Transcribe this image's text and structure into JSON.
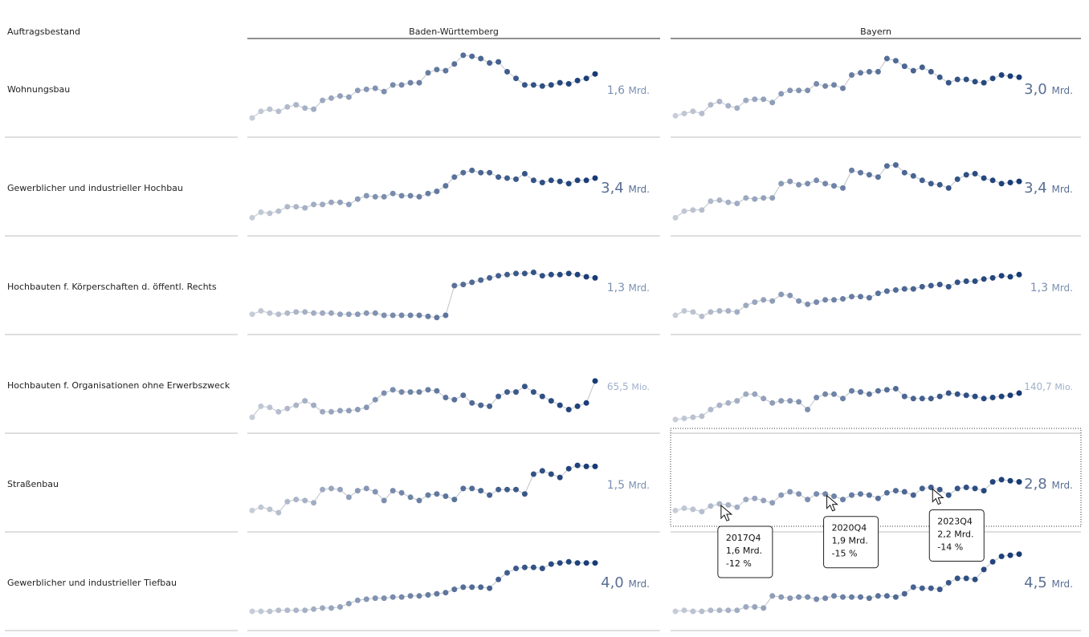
{
  "chart_data": {
    "type": "line",
    "title": "Auftragsbestand",
    "columns": [
      "Baden-Württemberg",
      "Bayern"
    ],
    "rows": [
      {
        "label": "Wohnungsbau",
        "cells": [
          {
            "series": [
              0.08,
              0.14,
              0.16,
              0.14,
              0.18,
              0.2,
              0.17,
              0.16,
              0.24,
              0.26,
              0.28,
              0.27,
              0.33,
              0.34,
              0.35,
              0.32,
              0.38,
              0.38,
              0.4,
              0.4,
              0.49,
              0.52,
              0.51,
              0.57,
              0.65,
              0.64,
              0.62,
              0.58,
              0.59,
              0.5,
              0.44,
              0.38,
              0.38,
              0.37,
              0.38,
              0.4,
              0.39,
              0.42,
              0.44,
              0.48
            ],
            "total": "1,6",
            "unit": "Mrd.",
            "size": "mid"
          },
          {
            "series": [
              0.1,
              0.12,
              0.14,
              0.12,
              0.2,
              0.23,
              0.19,
              0.17,
              0.24,
              0.25,
              0.25,
              0.22,
              0.3,
              0.33,
              0.33,
              0.33,
              0.39,
              0.37,
              0.38,
              0.35,
              0.47,
              0.49,
              0.5,
              0.5,
              0.62,
              0.6,
              0.55,
              0.51,
              0.54,
              0.5,
              0.45,
              0.4,
              0.43,
              0.43,
              0.41,
              0.4,
              0.44,
              0.47,
              0.46,
              0.45
            ],
            "total": "3,0",
            "unit": "Mrd.",
            "size": "big"
          }
        ]
      },
      {
        "label": "Gewerblicher und industrieller Hochbau",
        "cells": [
          {
            "series": [
              0.07,
              0.12,
              0.11,
              0.13,
              0.17,
              0.17,
              0.16,
              0.19,
              0.19,
              0.21,
              0.21,
              0.19,
              0.24,
              0.27,
              0.26,
              0.26,
              0.29,
              0.27,
              0.27,
              0.26,
              0.29,
              0.31,
              0.36,
              0.44,
              0.48,
              0.5,
              0.48,
              0.48,
              0.44,
              0.43,
              0.42,
              0.47,
              0.41,
              0.39,
              0.41,
              0.4,
              0.38,
              0.41,
              0.41,
              0.43
            ],
            "total": "3,4",
            "unit": "Mrd.",
            "size": "big"
          },
          {
            "series": [
              0.07,
              0.13,
              0.14,
              0.14,
              0.22,
              0.23,
              0.21,
              0.2,
              0.25,
              0.24,
              0.25,
              0.25,
              0.38,
              0.4,
              0.37,
              0.38,
              0.41,
              0.38,
              0.36,
              0.34,
              0.5,
              0.48,
              0.46,
              0.44,
              0.54,
              0.55,
              0.48,
              0.45,
              0.41,
              0.38,
              0.37,
              0.34,
              0.42,
              0.46,
              0.47,
              0.43,
              0.41,
              0.38,
              0.39,
              0.4
            ],
            "total": "3,4",
            "unit": "Mrd.",
            "size": "big"
          }
        ]
      },
      {
        "label": "Hochbauten f. Körperschaften d. öffentl. Rechts",
        "cells": [
          {
            "series": [
              0.09,
              0.12,
              0.1,
              0.09,
              0.1,
              0.11,
              0.11,
              0.1,
              0.1,
              0.1,
              0.09,
              0.09,
              0.09,
              0.1,
              0.1,
              0.08,
              0.08,
              0.08,
              0.08,
              0.08,
              0.07,
              0.06,
              0.08,
              0.35,
              0.36,
              0.38,
              0.4,
              0.42,
              0.44,
              0.45,
              0.46,
              0.46,
              0.47,
              0.44,
              0.45,
              0.45,
              0.46,
              0.45,
              0.43,
              0.42
            ],
            "total": "1,3",
            "unit": "Mrd.",
            "size": "mid"
          },
          {
            "series": [
              0.08,
              0.12,
              0.11,
              0.07,
              0.11,
              0.12,
              0.12,
              0.11,
              0.17,
              0.2,
              0.22,
              0.21,
              0.27,
              0.26,
              0.21,
              0.18,
              0.2,
              0.22,
              0.22,
              0.23,
              0.25,
              0.25,
              0.24,
              0.28,
              0.3,
              0.31,
              0.32,
              0.32,
              0.34,
              0.35,
              0.36,
              0.34,
              0.38,
              0.39,
              0.39,
              0.41,
              0.42,
              0.44,
              0.43,
              0.45
            ],
            "total": "1,3",
            "unit": "Mrd.",
            "size": "mid"
          }
        ]
      },
      {
        "label": "Hochbauten f. Organisationen ohne Erwerbszweck",
        "cells": [
          {
            "series": [
              0.05,
              0.15,
              0.14,
              0.1,
              0.13,
              0.16,
              0.2,
              0.16,
              0.1,
              0.1,
              0.11,
              0.11,
              0.12,
              0.14,
              0.21,
              0.27,
              0.3,
              0.28,
              0.28,
              0.28,
              0.3,
              0.29,
              0.23,
              0.21,
              0.25,
              0.18,
              0.16,
              0.15,
              0.24,
              0.28,
              0.28,
              0.33,
              0.28,
              0.24,
              0.2,
              0.16,
              0.12,
              0.15,
              0.18,
              0.38
            ],
            "total": "65,5",
            "unit": "Mio.",
            "size": "small"
          },
          {
            "series": [
              0.03,
              0.04,
              0.05,
              0.06,
              0.12,
              0.16,
              0.18,
              0.2,
              0.26,
              0.26,
              0.22,
              0.18,
              0.2,
              0.2,
              0.19,
              0.12,
              0.23,
              0.26,
              0.26,
              0.22,
              0.29,
              0.28,
              0.26,
              0.29,
              0.3,
              0.31,
              0.24,
              0.22,
              0.22,
              0.22,
              0.24,
              0.27,
              0.26,
              0.25,
              0.24,
              0.22,
              0.23,
              0.24,
              0.25,
              0.27
            ],
            "total": "140,7",
            "unit": "Mio.",
            "size": "small"
          }
        ]
      },
      {
        "label": "Straßenbau",
        "cells": [
          {
            "series": [
              0.1,
              0.13,
              0.11,
              0.08,
              0.18,
              0.2,
              0.19,
              0.17,
              0.29,
              0.3,
              0.29,
              0.22,
              0.28,
              0.3,
              0.27,
              0.19,
              0.28,
              0.26,
              0.22,
              0.19,
              0.24,
              0.25,
              0.23,
              0.2,
              0.3,
              0.3,
              0.28,
              0.24,
              0.29,
              0.29,
              0.29,
              0.25,
              0.43,
              0.46,
              0.43,
              0.4,
              0.48,
              0.51,
              0.5,
              0.5
            ],
            "total": "1,5",
            "unit": "Mrd.",
            "size": "mid"
          },
          {
            "series": [
              0.1,
              0.12,
              0.11,
              0.09,
              0.14,
              0.16,
              0.15,
              0.13,
              0.2,
              0.21,
              0.19,
              0.17,
              0.24,
              0.27,
              0.25,
              0.2,
              0.25,
              0.25,
              0.23,
              0.2,
              0.24,
              0.25,
              0.24,
              0.21,
              0.26,
              0.28,
              0.27,
              0.24,
              0.3,
              0.31,
              0.29,
              0.24,
              0.3,
              0.31,
              0.3,
              0.28,
              0.36,
              0.38,
              0.37,
              0.36
            ],
            "total": "2,8",
            "unit": "Mrd.",
            "size": "big"
          }
        ]
      },
      {
        "label": "Gewerblicher und industrieller Tiefbau",
        "cells": [
          {
            "series": [
              0.08,
              0.08,
              0.08,
              0.09,
              0.09,
              0.09,
              0.09,
              0.1,
              0.11,
              0.11,
              0.12,
              0.15,
              0.18,
              0.19,
              0.2,
              0.2,
              0.21,
              0.21,
              0.22,
              0.22,
              0.23,
              0.24,
              0.25,
              0.28,
              0.3,
              0.3,
              0.3,
              0.29,
              0.37,
              0.43,
              0.47,
              0.48,
              0.48,
              0.47,
              0.51,
              0.52,
              0.53,
              0.52,
              0.52,
              0.52
            ],
            "total": "4,0",
            "unit": "Mrd.",
            "size": "big"
          },
          {
            "series": [
              0.08,
              0.09,
              0.08,
              0.08,
              0.09,
              0.09,
              0.09,
              0.09,
              0.12,
              0.12,
              0.11,
              0.22,
              0.21,
              0.2,
              0.21,
              0.21,
              0.19,
              0.2,
              0.22,
              0.21,
              0.21,
              0.21,
              0.2,
              0.22,
              0.22,
              0.21,
              0.24,
              0.3,
              0.29,
              0.29,
              0.28,
              0.34,
              0.38,
              0.38,
              0.37,
              0.46,
              0.53,
              0.58,
              0.59,
              0.6
            ],
            "total": "4,5",
            "unit": "Mrd.",
            "size": "big"
          }
        ]
      }
    ],
    "highlight": {
      "row": 4,
      "col": 1
    },
    "tooltips": [
      {
        "point": 5,
        "quarter": "2017Q4",
        "value": "1,6 Mrd.",
        "change": "-12 %"
      },
      {
        "point": 17,
        "quarter": "2020Q4",
        "value": "1,9 Mrd.",
        "change": "-15 %"
      },
      {
        "point": 29,
        "quarter": "2023Q4",
        "value": "2,2 Mrd.",
        "change": "-14 %"
      }
    ],
    "colors": {
      "light": "#c7ccd8",
      "dark": "#173b75",
      "mid": "#6a83ab",
      "line": "#bfc3c9",
      "divider": "#bdbdbd"
    }
  }
}
